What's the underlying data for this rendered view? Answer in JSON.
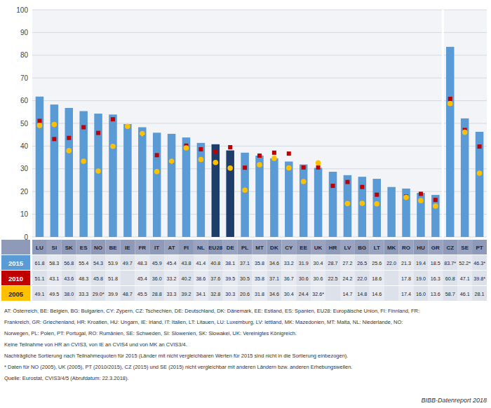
{
  "chart_data": {
    "type": "bar",
    "categories": [
      "LU",
      "SI",
      "SK",
      "ES",
      "NO",
      "BE",
      "IE",
      "FR",
      "IT",
      "AT",
      "FI",
      "NL",
      "EU28",
      "DE",
      "PL",
      "MT",
      "DK",
      "CY",
      "EE",
      "UK",
      "HR",
      "LV",
      "BG",
      "LT",
      "MK",
      "RO",
      "HU",
      "GR",
      "CZ",
      "SE",
      "PT"
    ],
    "series": [
      {
        "name": "2015",
        "type": "bar",
        "color": "#5B9BD5",
        "colors": [
          "#5B9BD5",
          "#5B9BD5",
          "#5B9BD5",
          "#5B9BD5",
          "#5B9BD5",
          "#5B9BD5",
          "#5B9BD5",
          "#5B9BD5",
          "#5B9BD5",
          "#5B9BD5",
          "#5B9BD5",
          "#5B9BD5",
          "#1F3D6B",
          "#1F3D6B",
          "#5B9BD5",
          "#5B9BD5",
          "#5B9BD5",
          "#5B9BD5",
          "#5B9BD5",
          "#5B9BD5",
          "#5B9BD5",
          "#5B9BD5",
          "#5B9BD5",
          "#5B9BD5",
          "#5B9BD5",
          "#5B9BD5",
          "#5B9BD5",
          "#5B9BD5",
          "#5B9BD5",
          "#5B9BD5",
          "#5B9BD5"
        ],
        "values": [
          61.8,
          58.3,
          56.8,
          55.4,
          54.3,
          53.9,
          49.7,
          48.3,
          45.9,
          45.4,
          43.8,
          41.4,
          40.8,
          38.1,
          37.1,
          35.8,
          34.6,
          33.2,
          31.9,
          30.4,
          28.7,
          27.2,
          26.5,
          25.6,
          22.0,
          21.3,
          19.4,
          18.5,
          83.7,
          52.2,
          46.3
        ],
        "value_labels": [
          "61.8",
          "58.3",
          "56.8",
          "55.4",
          "54.3",
          "53.9",
          "49.7",
          "48.3",
          "45.9",
          "45.4",
          "43.8",
          "41.4",
          "40.8",
          "38.1",
          "37.1",
          "35.8",
          "34.6",
          "33.2",
          "31.9",
          "30.4",
          "28.7",
          "27.2",
          "26.5",
          "25.6",
          "22.0",
          "21.3",
          "19.4",
          "18.5",
          "83.7*",
          "52.2*",
          "46.3*"
        ]
      },
      {
        "name": "2010",
        "type": "scatter",
        "marker": "square",
        "color": "#C00000",
        "values": [
          51.1,
          43.1,
          43.6,
          48.3,
          45.8,
          51.8,
          null,
          45.4,
          36.0,
          33.2,
          40.2,
          38.6,
          37.6,
          39.5,
          30.5,
          35.8,
          37.1,
          36.7,
          30.6,
          30.6,
          22.5,
          24.2,
          22.0,
          18.6,
          null,
          17.8,
          19.0,
          16.3,
          60.8,
          47.1,
          39.8
        ],
        "value_labels": [
          "51.1",
          "43.1",
          "43.6",
          "48.3",
          "45.8",
          "51.8",
          null,
          "45.4",
          "36.0",
          "33.2",
          "40.2",
          "38.6",
          "37.6",
          "39.5",
          "30.5",
          "35.8",
          "37.1",
          "36.7",
          "30.6",
          "30.6",
          "22.5",
          "24.2",
          "22.0",
          "18.6",
          null,
          "17.8",
          "19.0",
          "16.3",
          "60.8",
          "47.1",
          "39.8*"
        ]
      },
      {
        "name": "2005",
        "type": "scatter",
        "marker": "circle",
        "color": "#FFC000",
        "values": [
          49.1,
          49.5,
          38.0,
          33.3,
          29.0,
          39.9,
          48.7,
          45.5,
          28.8,
          33.3,
          39.2,
          34.1,
          32.8,
          30.3,
          20.6,
          31.8,
          34.6,
          30.4,
          24.4,
          32.6,
          null,
          14.7,
          14.8,
          14.6,
          null,
          17.4,
          16.0,
          13.6,
          58.7,
          46.1,
          28.1
        ],
        "value_labels": [
          "49.1",
          "49.5",
          "38.0",
          "33.3",
          "29.0*",
          "39.9",
          "48.7",
          "45.5",
          "28.8",
          "33.3",
          "39.2",
          "34.1",
          "32.8",
          "30.3",
          "20.6",
          "31.8",
          "34.6",
          "30.4",
          "24.4",
          "32.6*",
          null,
          "14.7",
          "14.8",
          "14.6",
          null,
          "17.4",
          "16.0",
          "13.6",
          "58.7",
          "46.1",
          "28.1"
        ]
      }
    ],
    "ylim": [
      0,
      100
    ],
    "yticks": [
      0,
      10,
      20,
      30,
      40,
      50,
      60,
      70,
      80,
      90,
      100
    ],
    "grid": true,
    "tick_labels": "y",
    "annotations": [
      "AT: Österreich, BE: Belgien, BG: Bulgarien, CY: Zypern, CZ: Tschechien, DE: Deutschland, DK: Dänemark, EE: Estland, ES: Spanien, EU28: Europäische Union, FI: Finnland, FR:",
      "Frankreich, GR: Griechenland, HR: Kroatien, HU: Ungarn, IE: Irland, IT: Italien, LT: Litauen, LU: Luxemburg, LV: lettland, MK: Mazedonien, MT: Malta, NL: Niederlande, NO:",
      "Norwegen, PL: Polen, PT: Portugal, RO: Rumänien, SE: Schweden, SI: Slowenien, SK: Slowakei, UK: Vereinigtes Königreich.",
      "Keine Teilnahme von HR an CVIS3, von IE an CVIS4 und von MK an CVIS3/4.",
      "Nachträgliche Sortierung nach Teilnahmequoten für 2015 (Länder mit nicht vergleichbaren Werten für 2015 sind nicht in die Sortierung einbezogen).",
      "* Daten für NO (2005), UK (2005), PT (2010/2015), CZ (2015) und SE (2015) nicht vergleichbar mit anderen Ländern bzw. anderen Erhebungswellen.",
      "Quelle: Eurostat, CVIS3/4/5 (Abrufdatum: 22.3.2018)."
    ],
    "source": "BIBB-Datenreport 2018"
  }
}
